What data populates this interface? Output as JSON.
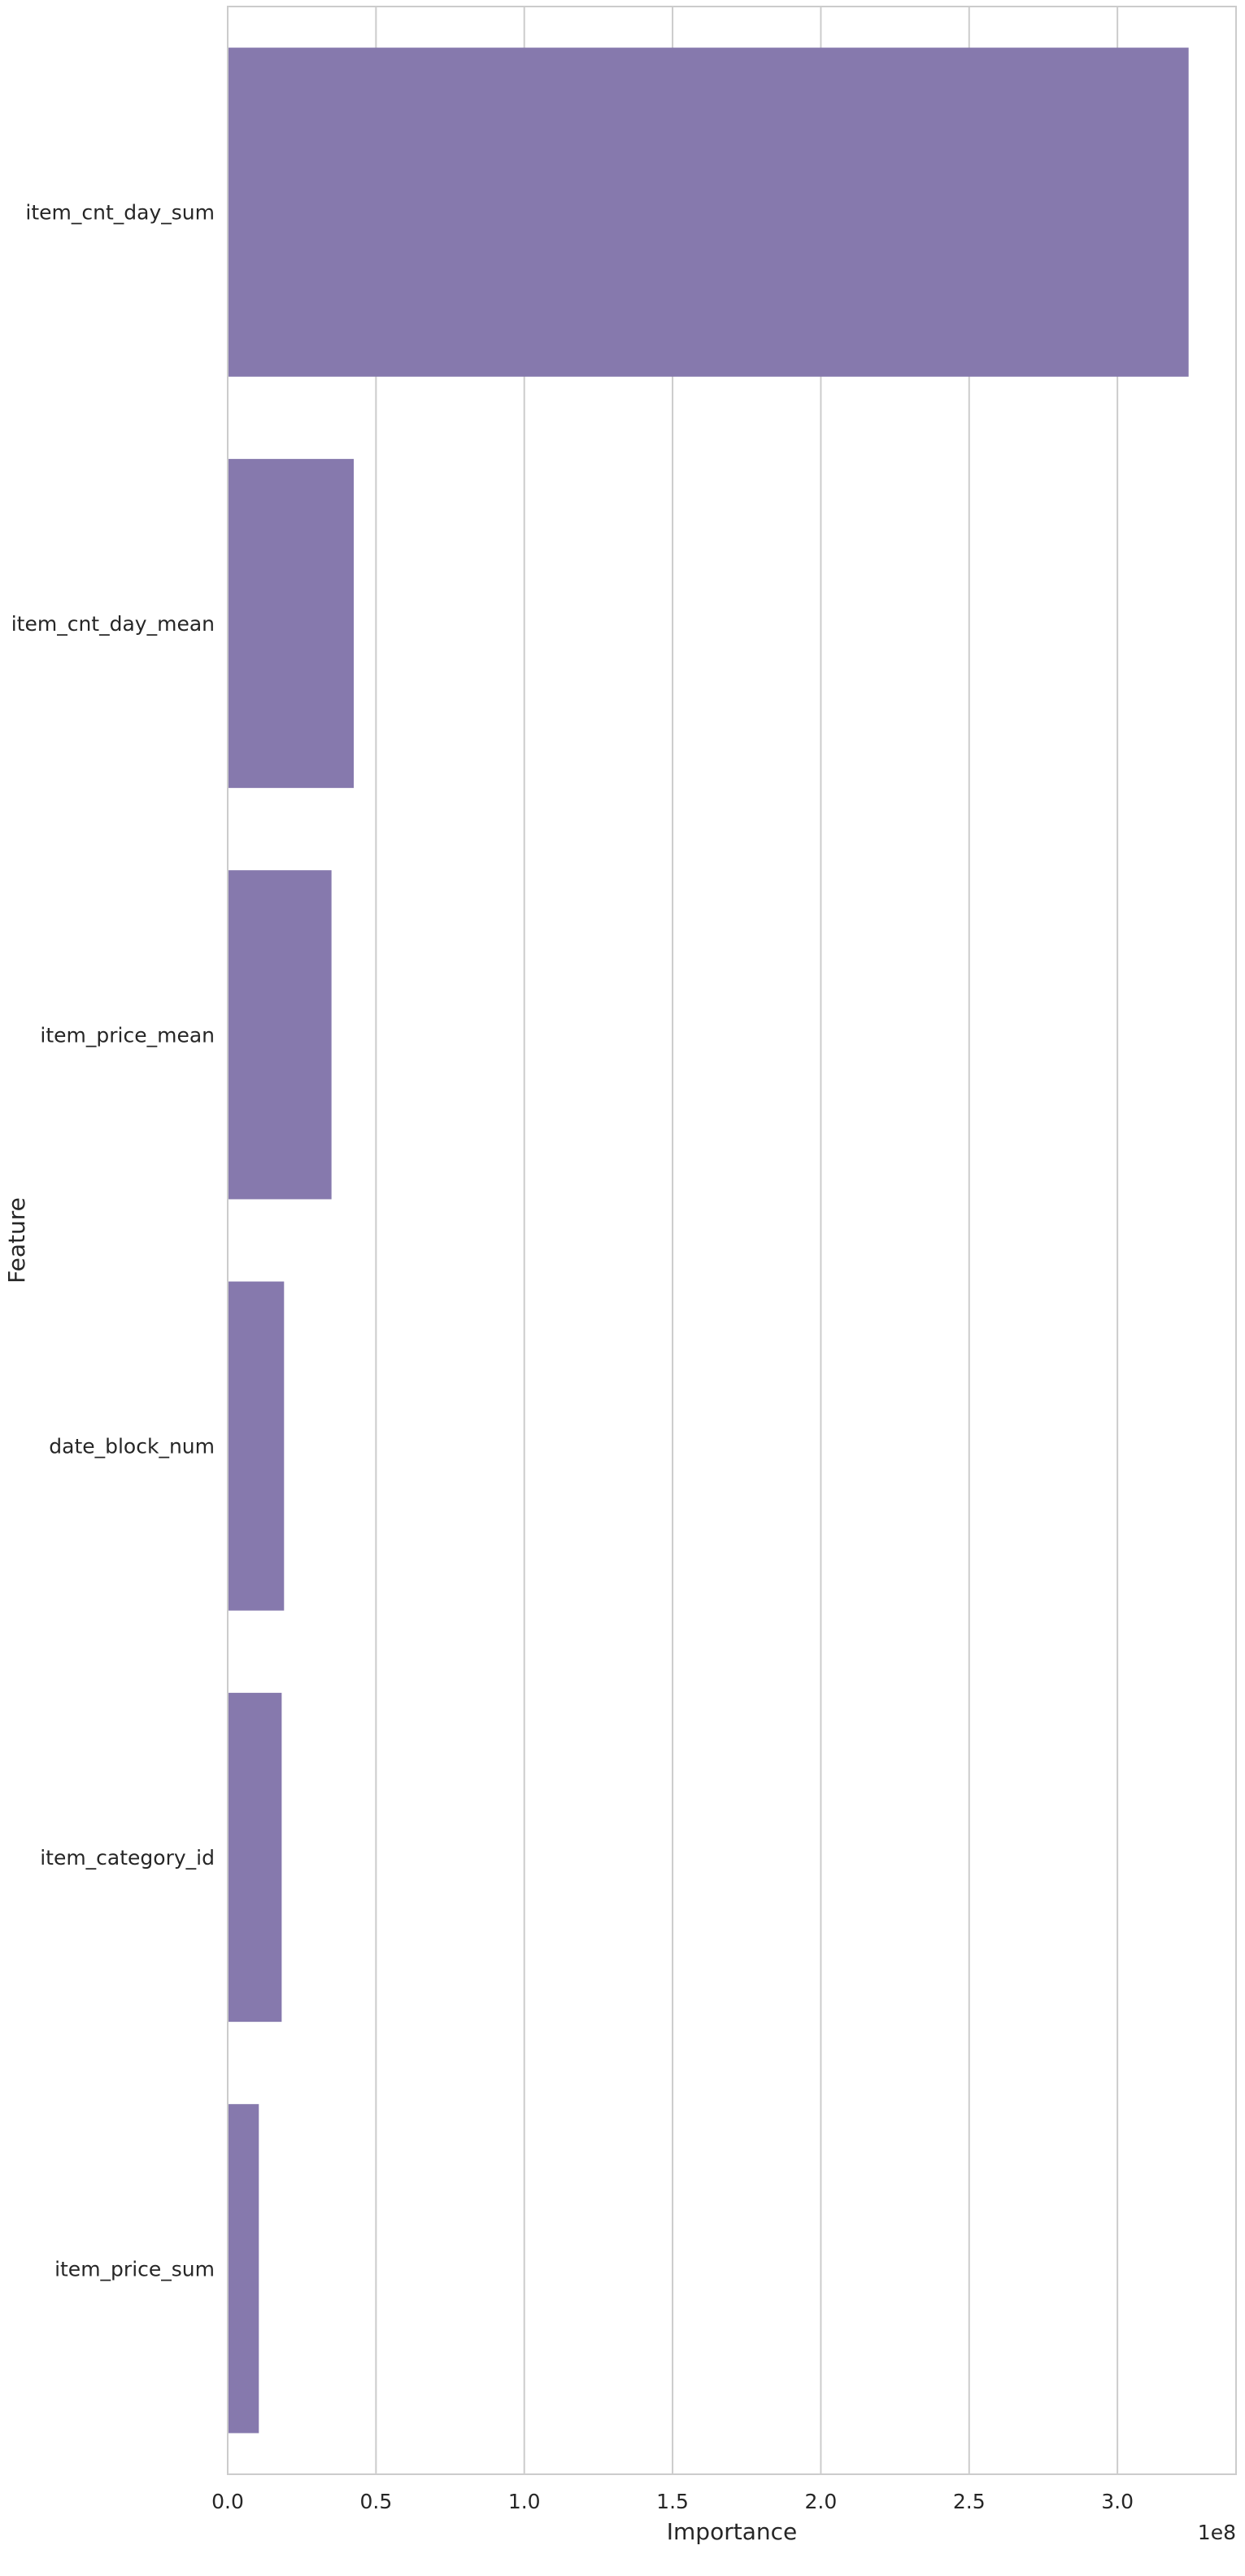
{
  "chart_data": {
    "type": "bar",
    "orientation": "horizontal",
    "categories": [
      "item_cnt_day_sum",
      "item_cnt_day_mean",
      "item_price_mean",
      "date_block_num",
      "item_category_id",
      "item_price_sum"
    ],
    "values": [
      324000000,
      42500000,
      35000000,
      19000000,
      18200000,
      10500000
    ],
    "xlabel": "Importance",
    "ylabel": "Feature",
    "x_offset_label": "1e8",
    "xlim": [
      0,
      340000000
    ],
    "xticks": [
      0,
      50000000,
      100000000,
      150000000,
      200000000,
      250000000,
      300000000
    ],
    "xtick_labels": [
      "0.0",
      "0.5",
      "1.0",
      "1.5",
      "2.0",
      "2.5",
      "3.0"
    ],
    "grid": "vertical",
    "bar_color": "#8679ad"
  }
}
